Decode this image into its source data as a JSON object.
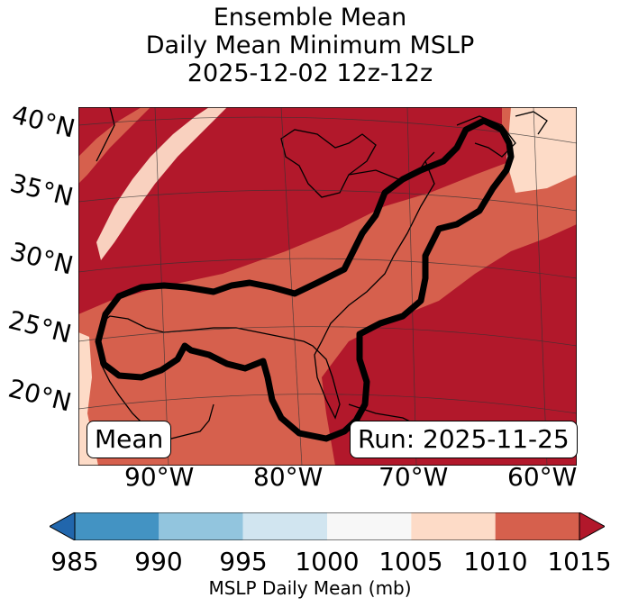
{
  "title": {
    "line1": "Ensemble Mean",
    "line2": "Daily Mean Minimum MSLP",
    "line3": "2025-12-02 12z-12z"
  },
  "map": {
    "lat_labels": [
      "40°N",
      "35°N",
      "30°N",
      "25°N",
      "20°N"
    ],
    "lon_labels": [
      "90°W",
      "80°W",
      "70°W",
      "60°W"
    ],
    "mean_label": "Mean",
    "run_label": "Run: 2025-11-25"
  },
  "colorbar": {
    "ticks": [
      "985",
      "990",
      "995",
      "1000",
      "1005",
      "1010",
      "1015"
    ],
    "label": "MSLP Daily Mean (mb)",
    "colors": [
      "#2166ac",
      "#4393c3",
      "#92c5de",
      "#d1e5f0",
      "#f7f7f7",
      "#fddbc7",
      "#d6604d",
      "#b2182b"
    ]
  }
}
